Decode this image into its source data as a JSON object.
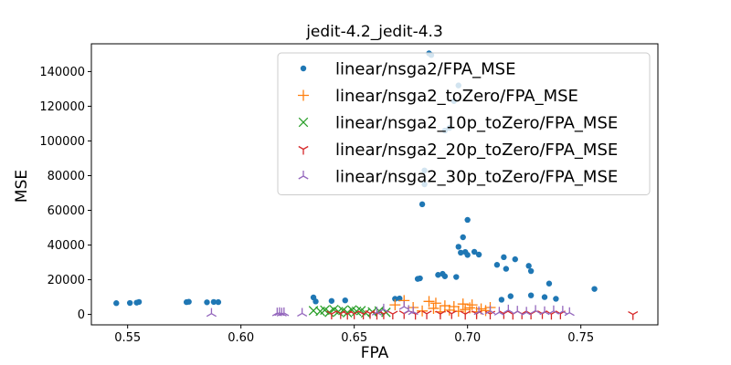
{
  "chart_data": {
    "type": "scatter",
    "title": "jedit-4.2_jedit-4.3",
    "xlabel": "FPA",
    "ylabel": "MSE",
    "xlim": [
      0.534,
      0.784
    ],
    "ylim": [
      -6000,
      156000
    ],
    "xticks": [
      0.55,
      0.6,
      0.65,
      0.7,
      0.75
    ],
    "xtick_labels": [
      "0.55",
      "0.60",
      "0.65",
      "0.70",
      "0.75"
    ],
    "yticks": [
      0,
      20000,
      40000,
      60000,
      80000,
      100000,
      120000,
      140000
    ],
    "ytick_labels": [
      "0",
      "20000",
      "40000",
      "60000",
      "80000",
      "100000",
      "120000",
      "140000"
    ],
    "legend_position": "top-right",
    "grid": false,
    "series": [
      {
        "name": "linear/nsga2/FPA_MSE",
        "marker": "dot",
        "color": "#1f77b4",
        "points": [
          [
            0.545,
            6500
          ],
          [
            0.551,
            6600
          ],
          [
            0.554,
            6800
          ],
          [
            0.555,
            7200
          ],
          [
            0.576,
            7100
          ],
          [
            0.577,
            7300
          ],
          [
            0.585,
            7000
          ],
          [
            0.588,
            7200
          ],
          [
            0.59,
            7100
          ],
          [
            0.632,
            9800
          ],
          [
            0.633,
            7500
          ],
          [
            0.64,
            7800
          ],
          [
            0.646,
            8100
          ],
          [
            0.668,
            9000
          ],
          [
            0.67,
            9200
          ],
          [
            0.678,
            20500
          ],
          [
            0.679,
            20800
          ],
          [
            0.68,
            63500
          ],
          [
            0.681,
            75000
          ],
          [
            0.681,
            83000
          ],
          [
            0.683,
            150500
          ],
          [
            0.684,
            149500
          ],
          [
            0.687,
            22800
          ],
          [
            0.689,
            23400
          ],
          [
            0.69,
            22000
          ],
          [
            0.69,
            106000
          ],
          [
            0.692,
            107500
          ],
          [
            0.694,
            123000
          ],
          [
            0.696,
            132000
          ],
          [
            0.695,
            21600
          ],
          [
            0.696,
            39000
          ],
          [
            0.697,
            35600
          ],
          [
            0.698,
            44500
          ],
          [
            0.699,
            36000
          ],
          [
            0.7,
            54500
          ],
          [
            0.7,
            34300
          ],
          [
            0.703,
            36100
          ],
          [
            0.705,
            34500
          ],
          [
            0.713,
            28600
          ],
          [
            0.716,
            33000
          ],
          [
            0.717,
            26300
          ],
          [
            0.721,
            31800
          ],
          [
            0.715,
            8500
          ],
          [
            0.719,
            10500
          ],
          [
            0.727,
            28000
          ],
          [
            0.728,
            25000
          ],
          [
            0.728,
            11000
          ],
          [
            0.734,
            10000
          ],
          [
            0.736,
            17800
          ],
          [
            0.739,
            9000
          ],
          [
            0.756,
            14700
          ]
        ]
      },
      {
        "name": "linear/nsga2_toZero/FPA_MSE",
        "marker": "plus",
        "color": "#ff7f0e",
        "points": [
          [
            0.668,
            5500
          ],
          [
            0.672,
            8000
          ],
          [
            0.676,
            4000
          ],
          [
            0.68,
            2000
          ],
          [
            0.683,
            7500
          ],
          [
            0.685,
            3500
          ],
          [
            0.686,
            6500
          ],
          [
            0.688,
            1500
          ],
          [
            0.69,
            5000
          ],
          [
            0.692,
            2500
          ],
          [
            0.694,
            4500
          ],
          [
            0.696,
            1800
          ],
          [
            0.698,
            6000
          ],
          [
            0.699,
            2800
          ],
          [
            0.701,
            3800
          ],
          [
            0.702,
            5500
          ],
          [
            0.704,
            1500
          ],
          [
            0.706,
            3200
          ],
          [
            0.708,
            2200
          ],
          [
            0.71,
            4000
          ]
        ]
      },
      {
        "name": "linear/nsga2_10p_toZero/FPA_MSE",
        "marker": "x",
        "color": "#2ca02c",
        "points": [
          [
            0.632,
            2200
          ],
          [
            0.635,
            1800
          ],
          [
            0.637,
            2500
          ],
          [
            0.639,
            1200
          ],
          [
            0.641,
            2800
          ],
          [
            0.643,
            1600
          ],
          [
            0.645,
            2300
          ],
          [
            0.647,
            1000
          ],
          [
            0.649,
            2600
          ],
          [
            0.651,
            1800
          ],
          [
            0.653,
            2200
          ],
          [
            0.655,
            900
          ],
          [
            0.658,
            1500
          ],
          [
            0.661,
            2000
          ],
          [
            0.664,
            1200
          ]
        ]
      },
      {
        "name": "linear/nsga2_20p_toZero/FPA_MSE",
        "marker": "tri_down",
        "color": "#d62728",
        "points": [
          [
            0.64,
            300
          ],
          [
            0.644,
            500
          ],
          [
            0.647,
            200
          ],
          [
            0.65,
            400
          ],
          [
            0.654,
            300
          ],
          [
            0.657,
            600
          ],
          [
            0.66,
            200
          ],
          [
            0.663,
            400
          ],
          [
            0.667,
            300
          ],
          [
            0.672,
            500
          ],
          [
            0.677,
            200
          ],
          [
            0.682,
            400
          ],
          [
            0.688,
            300
          ],
          [
            0.693,
            500
          ],
          [
            0.699,
            200
          ],
          [
            0.704,
            400
          ],
          [
            0.71,
            300
          ],
          [
            0.716,
            500
          ],
          [
            0.72,
            200
          ],
          [
            0.724,
            400
          ],
          [
            0.728,
            300
          ],
          [
            0.733,
            500
          ],
          [
            0.737,
            200
          ],
          [
            0.741,
            400
          ],
          [
            0.773,
            0
          ]
        ]
      },
      {
        "name": "linear/nsga2_30p_toZero/FPA_MSE",
        "marker": "tri_up",
        "color": "#9467bd",
        "points": [
          [
            0.587,
            500
          ],
          [
            0.616,
            800
          ],
          [
            0.617,
            1000
          ],
          [
            0.618,
            700
          ],
          [
            0.619,
            900
          ],
          [
            0.627,
            600
          ],
          [
            0.66,
            1200
          ],
          [
            0.663,
            3000
          ],
          [
            0.672,
            4500
          ],
          [
            0.674,
            2200
          ],
          [
            0.676,
            1500
          ],
          [
            0.705,
            1500
          ],
          [
            0.71,
            2000
          ],
          [
            0.714,
            1200
          ],
          [
            0.718,
            2500
          ],
          [
            0.722,
            1800
          ],
          [
            0.726,
            1200
          ],
          [
            0.73,
            2200
          ],
          [
            0.734,
            1500
          ],
          [
            0.738,
            2000
          ],
          [
            0.742,
            1800
          ],
          [
            0.745,
            1000
          ]
        ]
      }
    ]
  }
}
